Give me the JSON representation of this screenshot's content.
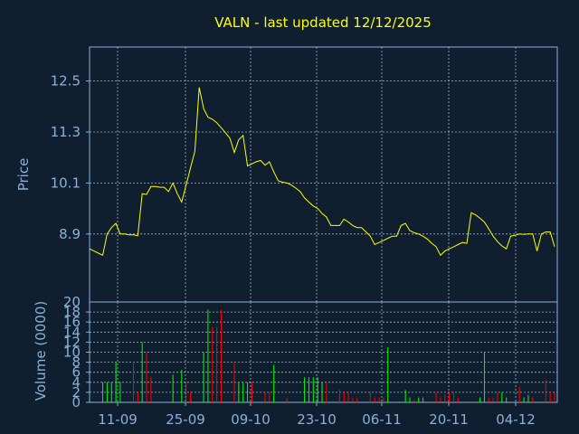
{
  "chart_data": [
    {
      "type": "line",
      "title": "VALN - last updated 12/12/2025",
      "ylabel": "Price",
      "xlabel": "",
      "ylim": [
        7.3,
        13.3
      ],
      "yticks": [
        "8.9",
        "10.1",
        "11.3",
        "12.5"
      ],
      "grid": true,
      "series": [
        {
          "values": [
            8.55,
            8.5,
            8.45,
            8.4,
            8.9,
            9.05,
            9.15,
            8.9,
            8.9,
            8.88,
            8.88,
            8.86,
            9.85,
            9.83,
            10.02,
            10.02,
            10.0,
            10.0,
            9.9,
            10.1,
            9.85,
            9.65,
            10.05,
            10.45,
            10.85,
            12.35,
            11.85,
            11.65,
            11.6,
            11.52,
            11.4,
            11.28,
            11.15,
            10.82,
            11.12,
            11.22,
            10.5,
            10.55,
            10.6,
            10.63,
            10.52,
            10.6,
            10.36,
            10.15,
            10.12,
            10.1,
            10.05,
            9.98,
            9.9,
            9.75,
            9.65,
            9.56,
            9.5,
            9.38,
            9.3,
            9.1,
            9.1,
            9.1,
            9.25,
            9.18,
            9.1,
            9.05,
            9.05,
            8.95,
            8.85,
            8.65,
            8.7,
            8.75,
            8.8,
            8.85,
            8.85,
            9.1,
            9.15,
            8.98,
            8.93,
            8.9,
            8.85,
            8.78,
            8.68,
            8.6,
            8.4,
            8.5,
            8.55,
            8.6,
            8.65,
            8.7,
            8.68,
            9.4,
            9.35,
            9.27,
            9.18,
            9.02,
            8.85,
            8.72,
            8.62,
            8.55,
            8.85,
            8.87,
            8.9,
            8.89,
            8.9,
            8.9,
            8.5,
            8.9,
            8.95,
            8.95,
            8.6
          ]
        }
      ]
    },
    {
      "type": "bar",
      "ylabel": "Volume (0000)",
      "xlabel": "",
      "ylim": [
        0,
        20
      ],
      "yticks": [
        "0",
        "2",
        "4",
        "6",
        "8",
        "10",
        "12",
        "14",
        "16",
        "18",
        "20"
      ],
      "x_tick_labels": [
        "11-09",
        "25-09",
        "09-10",
        "23-10",
        "06-11",
        "20-11",
        "04-12"
      ],
      "grid": true,
      "up_color": "#00ff00",
      "down_color": "#ff0000",
      "series": [
        {
          "values": [
            0,
            0,
            0,
            4,
            4,
            4,
            8,
            4,
            0,
            0,
            8,
            2,
            12,
            10,
            5,
            0,
            0,
            0,
            0,
            5.5,
            0,
            6.5,
            4,
            2,
            0,
            0,
            10,
            18.5,
            15,
            15,
            18.5,
            0,
            0,
            8,
            4,
            4,
            4,
            4,
            0,
            0,
            2,
            2,
            7.5,
            0,
            0,
            1,
            0,
            0,
            0,
            5,
            5,
            5,
            5,
            4,
            4,
            0,
            0,
            2.5,
            2,
            2,
            1,
            1,
            0,
            0,
            2,
            1,
            1,
            1,
            11,
            0,
            0,
            0,
            2.5,
            1,
            0.5,
            1,
            1,
            0,
            0,
            2,
            1,
            1.5,
            2,
            2,
            1,
            0,
            0,
            0,
            0,
            1,
            10,
            1,
            1,
            2,
            2,
            1,
            0,
            0,
            3,
            1,
            1.5,
            1,
            0,
            0,
            4.5,
            2,
            2
          ],
          "direction": [
            "u",
            "u",
            "u",
            "u",
            "u",
            "u",
            "u",
            "u",
            "u",
            "u",
            "d",
            "d",
            "u",
            "d",
            "d",
            "u",
            "u",
            "u",
            "u",
            "u",
            "d",
            "u",
            "d",
            "d",
            "u",
            "u",
            "u",
            "u",
            "d",
            "d",
            "d",
            "u",
            "u",
            "d",
            "u",
            "u",
            "u",
            "d",
            "u",
            "u",
            "d",
            "d",
            "u",
            "u",
            "d",
            "d",
            "u",
            "u",
            "u",
            "u",
            "u",
            "u",
            "u",
            "u",
            "d",
            "u",
            "u",
            "d",
            "d",
            "d",
            "d",
            "d",
            "u",
            "u",
            "d",
            "d",
            "d",
            "d",
            "u",
            "u",
            "u",
            "u",
            "u",
            "u",
            "d",
            "u",
            "u",
            "u",
            "u",
            "d",
            "d",
            "d",
            "d",
            "d",
            "d",
            "u",
            "u",
            "u",
            "u",
            "u",
            "u",
            "d",
            "d",
            "d",
            "u",
            "u",
            "u",
            "u",
            "d",
            "u",
            "u",
            "d",
            "u",
            "u",
            "d",
            "d",
            "d"
          ]
        }
      ]
    }
  ]
}
